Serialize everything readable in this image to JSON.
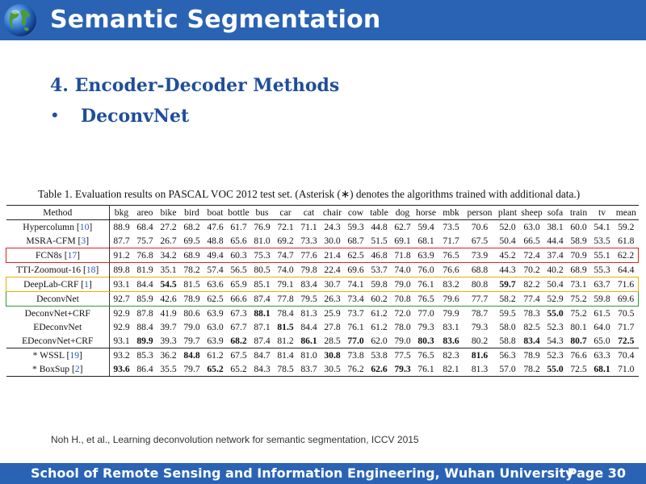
{
  "slide": {
    "title": "Semantic Segmentation",
    "heading": "4. Encoder-Decoder Methods",
    "bullet_mark": "•",
    "bullet_text": "DeconvNet",
    "citation": "Noh H., et al.,  Learning deconvolution network for semantic segmentation, ICCV 2015",
    "footer": "School of Remote Sensing and Information Engineering, Wuhan University",
    "page": "Page 30"
  },
  "colors": {
    "bar": "#2a63b3",
    "heading": "#1f4e9a",
    "highlight_red": "#e02020",
    "highlight_yellow": "#e8b000",
    "highlight_green": "#2a9a3a",
    "citation_link": "#2a55c0"
  },
  "icons": {
    "logo": "globe-icon"
  },
  "table": {
    "caption": "Table 1. Evaluation results on PASCAL VOC 2012 test set. (Asterisk (∗) denotes the algorithms trained with additional data.)",
    "columns": [
      "Method",
      "bkg",
      "areo",
      "bike",
      "bird",
      "boat",
      "bottle",
      "bus",
      "car",
      "cat",
      "chair",
      "cow",
      "table",
      "dog",
      "horse",
      "mbk",
      "person",
      "plant",
      "sheep",
      "sofa",
      "train",
      "tv",
      "mean"
    ],
    "rows": [
      {
        "method": "Hypercolumn [",
        "ref": "10",
        "close": "]",
        "outline": "",
        "values": [
          "88.9",
          "68.4",
          "27.2",
          "68.2",
          "47.6",
          "61.7",
          "76.9",
          "72.1",
          "71.1",
          "24.3",
          "59.3",
          "44.8",
          "62.7",
          "59.4",
          "73.5",
          "70.6",
          "52.0",
          "63.0",
          "38.1",
          "60.0",
          "54.1",
          "59.2"
        ],
        "bold": []
      },
      {
        "method": "MSRA-CFM [",
        "ref": "3",
        "close": "]",
        "outline": "",
        "values": [
          "87.7",
          "75.7",
          "26.7",
          "69.5",
          "48.8",
          "65.6",
          "81.0",
          "69.2",
          "73.3",
          "30.0",
          "68.7",
          "51.5",
          "69.1",
          "68.1",
          "71.7",
          "67.5",
          "50.4",
          "66.5",
          "44.4",
          "58.9",
          "53.5",
          "61.8"
        ],
        "bold": []
      },
      {
        "method": "FCN8s [",
        "ref": "17",
        "close": "]",
        "outline": "red",
        "values": [
          "91.2",
          "76.8",
          "34.2",
          "68.9",
          "49.4",
          "60.3",
          "75.3",
          "74.7",
          "77.6",
          "21.4",
          "62.5",
          "46.8",
          "71.8",
          "63.9",
          "76.5",
          "73.9",
          "45.2",
          "72.4",
          "37.4",
          "70.9",
          "55.1",
          "62.2"
        ],
        "bold": []
      },
      {
        "method": "TTI-Zoomout-16 [",
        "ref": "18",
        "close": "]",
        "outline": "",
        "values": [
          "89.8",
          "81.9",
          "35.1",
          "78.2",
          "57.4",
          "56.5",
          "80.5",
          "74.0",
          "79.8",
          "22.4",
          "69.6",
          "53.7",
          "74.0",
          "76.0",
          "76.6",
          "68.8",
          "44.3",
          "70.2",
          "40.2",
          "68.9",
          "55.3",
          "64.4"
        ],
        "bold": []
      },
      {
        "method": "DeepLab-CRF [",
        "ref": "1",
        "close": "]",
        "outline": "yellow",
        "values": [
          "93.1",
          "84.4",
          "54.5",
          "81.5",
          "63.6",
          "65.9",
          "85.1",
          "79.1",
          "83.4",
          "30.7",
          "74.1",
          "59.8",
          "79.0",
          "76.1",
          "83.2",
          "80.8",
          "59.7",
          "82.2",
          "50.4",
          "73.1",
          "63.7",
          "71.6"
        ],
        "bold": [
          2,
          16
        ]
      },
      {
        "method": "DeconvNet",
        "ref": "",
        "close": "",
        "outline": "green",
        "values": [
          "92.7",
          "85.9",
          "42.6",
          "78.9",
          "62.5",
          "66.6",
          "87.4",
          "77.8",
          "79.5",
          "26.3",
          "73.4",
          "60.2",
          "70.8",
          "76.5",
          "79.6",
          "77.7",
          "58.2",
          "77.4",
          "52.9",
          "75.2",
          "59.8",
          "69.6"
        ],
        "bold": []
      },
      {
        "method": "DeconvNet+CRF",
        "ref": "",
        "close": "",
        "outline": "",
        "values": [
          "92.9",
          "87.8",
          "41.9",
          "80.6",
          "63.9",
          "67.3",
          "88.1",
          "78.4",
          "81.3",
          "25.9",
          "73.7",
          "61.2",
          "72.0",
          "77.0",
          "79.9",
          "78.7",
          "59.5",
          "78.3",
          "55.0",
          "75.2",
          "61.5",
          "70.5"
        ],
        "bold": [
          6,
          18
        ]
      },
      {
        "method": "EDeconvNet",
        "ref": "",
        "close": "",
        "outline": "",
        "values": [
          "92.9",
          "88.4",
          "39.7",
          "79.0",
          "63.0",
          "67.7",
          "87.1",
          "81.5",
          "84.4",
          "27.8",
          "76.1",
          "61.2",
          "78.0",
          "79.3",
          "83.1",
          "79.3",
          "58.0",
          "82.5",
          "52.3",
          "80.1",
          "64.0",
          "71.7"
        ],
        "bold": [
          7
        ]
      },
      {
        "method": "EDeconvNet+CRF",
        "ref": "",
        "close": "",
        "outline": "",
        "values": [
          "93.1",
          "89.9",
          "39.3",
          "79.7",
          "63.9",
          "68.2",
          "87.4",
          "81.2",
          "86.1",
          "28.5",
          "77.0",
          "62.0",
          "79.0",
          "80.3",
          "83.6",
          "80.2",
          "58.8",
          "83.4",
          "54.3",
          "80.7",
          "65.0",
          "72.5"
        ],
        "bold": [
          1,
          5,
          8,
          10,
          13,
          14,
          17,
          19,
          21
        ]
      },
      {
        "method": "* WSSL [",
        "ref": "19",
        "close": "]",
        "outline": "",
        "values": [
          "93.2",
          "85.3",
          "36.2",
          "84.8",
          "61.2",
          "67.5",
          "84.7",
          "81.4",
          "81.0",
          "30.8",
          "73.8",
          "53.8",
          "77.5",
          "76.5",
          "82.3",
          "81.6",
          "56.3",
          "78.9",
          "52.3",
          "76.6",
          "63.3",
          "70.4"
        ],
        "bold": [
          3,
          9,
          15
        ]
      },
      {
        "method": "* BoxSup [",
        "ref": "2",
        "close": "]",
        "outline": "",
        "values": [
          "93.6",
          "86.4",
          "35.5",
          "79.7",
          "65.2",
          "65.2",
          "84.3",
          "78.5",
          "83.7",
          "30.5",
          "76.2",
          "62.6",
          "79.3",
          "76.1",
          "82.1",
          "81.3",
          "57.0",
          "78.2",
          "55.0",
          "72.5",
          "68.1",
          "71.0"
        ],
        "bold": [
          0,
          4,
          11,
          12,
          18,
          20
        ]
      }
    ]
  }
}
